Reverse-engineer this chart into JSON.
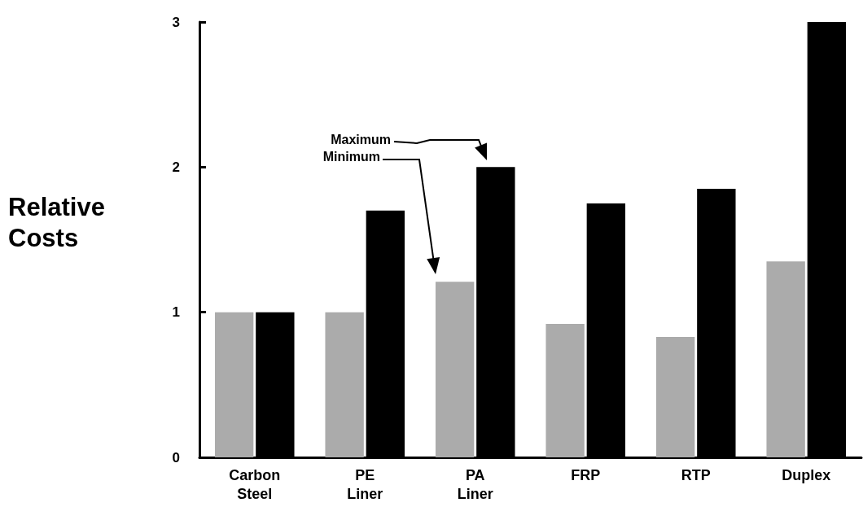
{
  "chart_data": {
    "type": "bar",
    "ylabel": "Relative Costs",
    "categories": [
      "Carbon\nSteel",
      "PE\nLiner",
      "PA\nLiner",
      "FRP",
      "RTP",
      "Duplex"
    ],
    "series": [
      {
        "color": "#ababab",
        "values": [
          1.0,
          1.0,
          1.21,
          0.92,
          0.83,
          1.35
        ]
      },
      {
        "color": "#000000",
        "values": [
          1.0,
          1.7,
          2.0,
          1.75,
          1.85,
          3.0
        ]
      }
    ],
    "ylim": [
      0,
      3
    ],
    "yticks": [
      0,
      1,
      2,
      3
    ],
    "annotations": [
      "Maximum",
      "Minimum"
    ]
  }
}
